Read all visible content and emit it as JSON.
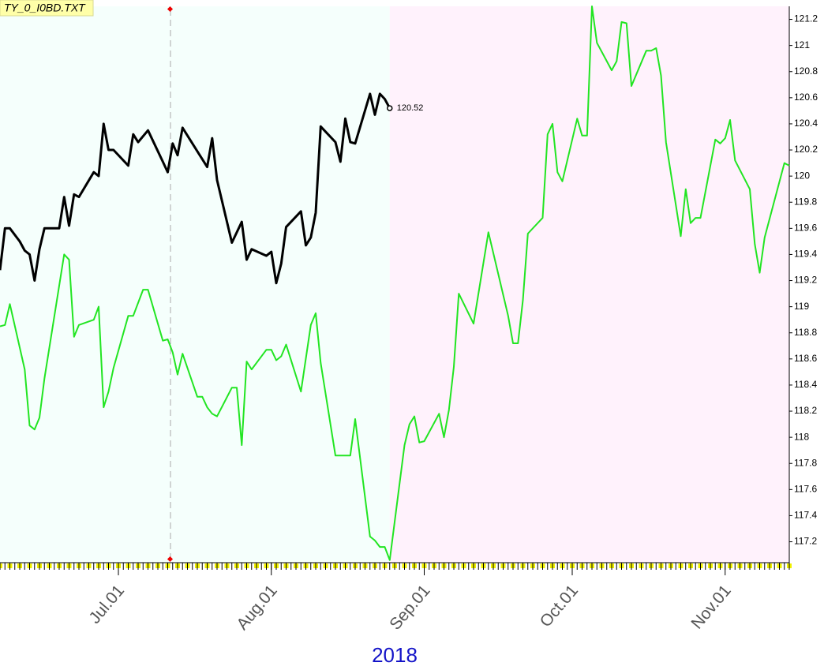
{
  "chart_data": {
    "type": "line",
    "title": "TY_0_I0BD.TXT",
    "xlabel": "2018",
    "xlim": [
      "2018-06-07",
      "2018-11-14"
    ],
    "xticks": [
      {
        "value": "2018-07-01",
        "label": "Jul.01"
      },
      {
        "value": "2018-08-01",
        "label": "Aug.01"
      },
      {
        "value": "2018-09-01",
        "label": "Sep.01"
      },
      {
        "value": "2018-10-01",
        "label": "Oct.01"
      },
      {
        "value": "2018-11-01",
        "label": "Nov.01"
      }
    ],
    "ylim": [
      117.04,
      121.3
    ],
    "yticks": [
      117.2,
      117.4,
      117.6,
      117.8,
      118,
      118.2,
      118.4,
      118.6,
      118.8,
      119,
      119.2,
      119.4,
      119.6,
      119.8,
      120,
      120.2,
      120.4,
      120.6,
      120.8,
      121,
      121.2
    ],
    "y_axis_side": "right",
    "grid": false,
    "background_colors": [
      "#f5fffc",
      "#fff2fc"
    ],
    "series": [
      {
        "color": "#000000",
        "x": [
          "2018-06-07",
          "2018-06-08",
          "2018-06-09",
          "2018-06-11",
          "2018-06-12",
          "2018-06-13",
          "2018-06-14",
          "2018-06-15",
          "2018-06-16",
          "2018-06-19",
          "2018-06-20",
          "2018-06-21",
          "2018-06-22",
          "2018-06-23",
          "2018-06-26",
          "2018-06-27",
          "2018-06-28",
          "2018-06-29",
          "2018-06-30",
          "2018-07-03",
          "2018-07-04",
          "2018-07-05",
          "2018-07-07",
          "2018-07-10",
          "2018-07-11",
          "2018-07-12",
          "2018-07-13",
          "2018-07-14",
          "2018-07-19",
          "2018-07-20",
          "2018-07-21",
          "2018-07-24",
          "2018-07-26",
          "2018-07-27",
          "2018-07-28",
          "2018-07-31",
          "2018-08-01",
          "2018-08-02",
          "2018-08-03",
          "2018-08-04",
          "2018-08-07",
          "2018-08-08",
          "2018-08-09",
          "2018-08-10",
          "2018-08-11",
          "2018-08-14",
          "2018-08-15",
          "2018-08-16",
          "2018-08-17",
          "2018-08-18",
          "2018-08-21",
          "2018-08-22",
          "2018-08-23",
          "2018-08-24",
          "2018-08-25"
        ],
        "values": [
          119.28,
          119.6,
          119.6,
          119.5,
          119.43,
          119.4,
          119.2,
          119.44,
          119.6,
          119.6,
          119.84,
          119.62,
          119.86,
          119.84,
          120.03,
          120.0,
          120.4,
          120.2,
          120.2,
          120.08,
          120.32,
          120.26,
          120.35,
          120.11,
          120.03,
          120.25,
          120.16,
          120.37,
          120.07,
          120.29,
          119.97,
          119.49,
          119.65,
          119.36,
          119.44,
          119.39,
          119.42,
          119.18,
          119.33,
          119.61,
          119.73,
          119.47,
          119.53,
          119.72,
          120.38,
          120.26,
          120.11,
          120.44,
          120.26,
          120.25,
          120.63,
          120.47,
          120.63,
          120.59,
          120.52
        ]
      },
      {
        "color": "#22e522",
        "x": [
          "2018-06-07",
          "2018-06-08",
          "2018-06-09",
          "2018-06-12",
          "2018-06-13",
          "2018-06-14",
          "2018-06-15",
          "2018-06-16",
          "2018-06-20",
          "2018-06-21",
          "2018-06-22",
          "2018-06-23",
          "2018-06-26",
          "2018-06-27",
          "2018-06-28",
          "2018-06-29",
          "2018-06-30",
          "2018-07-03",
          "2018-07-04",
          "2018-07-06",
          "2018-07-07",
          "2018-07-10",
          "2018-07-11",
          "2018-07-12",
          "2018-07-13",
          "2018-07-14",
          "2018-07-17",
          "2018-07-18",
          "2018-07-19",
          "2018-07-20",
          "2018-07-21",
          "2018-07-24",
          "2018-07-25",
          "2018-07-26",
          "2018-07-27",
          "2018-07-28",
          "2018-07-31",
          "2018-08-01",
          "2018-08-02",
          "2018-08-03",
          "2018-08-04",
          "2018-08-07",
          "2018-08-09",
          "2018-08-10",
          "2018-08-11",
          "2018-08-14",
          "2018-08-15",
          "2018-08-17",
          "2018-08-18",
          "2018-08-21",
          "2018-08-22",
          "2018-08-23",
          "2018-08-24",
          "2018-08-25",
          "2018-08-28",
          "2018-08-29",
          "2018-08-30",
          "2018-08-31",
          "2018-09-01",
          "2018-09-04",
          "2018-09-05",
          "2018-09-06",
          "2018-09-07",
          "2018-09-08",
          "2018-09-11",
          "2018-09-14",
          "2018-09-18",
          "2018-09-19",
          "2018-09-20",
          "2018-09-21",
          "2018-09-22",
          "2018-09-25",
          "2018-09-26",
          "2018-09-27",
          "2018-09-28",
          "2018-09-29",
          "2018-10-02",
          "2018-10-03",
          "2018-10-04",
          "2018-10-05",
          "2018-10-06",
          "2018-10-09",
          "2018-10-10",
          "2018-10-11",
          "2018-10-12",
          "2018-10-13",
          "2018-10-16",
          "2018-10-17",
          "2018-10-18",
          "2018-10-19",
          "2018-10-20",
          "2018-10-23",
          "2018-10-24",
          "2018-10-25",
          "2018-10-26",
          "2018-10-27",
          "2018-10-30",
          "2018-10-31",
          "2018-11-01",
          "2018-11-02",
          "2018-11-03",
          "2018-11-06",
          "2018-11-07",
          "2018-11-08",
          "2018-11-09",
          "2018-11-13",
          "2018-11-14"
        ],
        "values": [
          118.85,
          118.86,
          119.02,
          118.52,
          118.09,
          118.06,
          118.15,
          118.45,
          119.4,
          119.36,
          118.77,
          118.86,
          118.9,
          119.0,
          118.23,
          118.35,
          118.53,
          118.93,
          118.93,
          119.13,
          119.13,
          118.74,
          118.75,
          118.65,
          118.48,
          118.64,
          118.31,
          118.31,
          118.23,
          118.18,
          118.16,
          118.38,
          118.38,
          117.94,
          118.58,
          118.52,
          118.67,
          118.67,
          118.59,
          118.62,
          118.71,
          118.35,
          118.86,
          118.95,
          118.57,
          117.86,
          117.86,
          117.86,
          118.14,
          117.24,
          117.21,
          117.16,
          117.16,
          117.06,
          117.94,
          118.1,
          118.16,
          117.96,
          117.97,
          118.18,
          118.0,
          118.21,
          118.54,
          119.1,
          118.87,
          119.57,
          118.93,
          118.72,
          118.72,
          119.05,
          119.56,
          119.68,
          120.32,
          120.4,
          120.03,
          119.96,
          120.44,
          120.31,
          120.31,
          121.3,
          121.02,
          120.81,
          120.88,
          121.18,
          121.17,
          120.69,
          120.96,
          120.96,
          120.98,
          120.77,
          120.26,
          119.54,
          119.9,
          119.64,
          119.68,
          119.68,
          120.28,
          120.25,
          120.29,
          120.43,
          120.12,
          119.9,
          119.48,
          119.26,
          119.53,
          120.1,
          120.08
        ]
      }
    ]
  }
}
